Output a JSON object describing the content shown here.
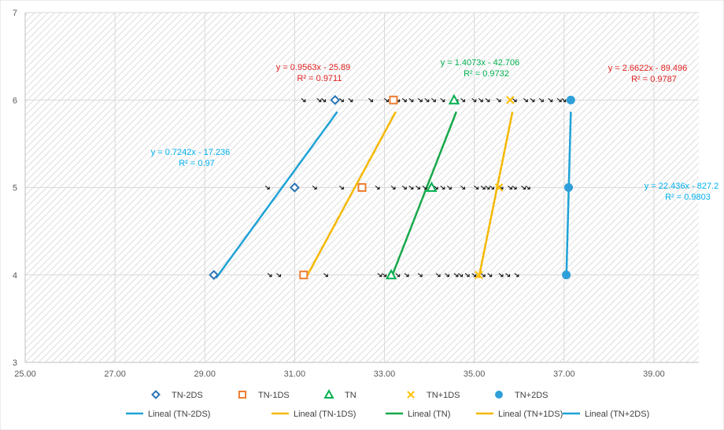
{
  "chart_data": {
    "type": "scatter",
    "xlim": [
      25.0,
      40.0
    ],
    "ylim": [
      3,
      7
    ],
    "x_ticks": [
      "25.00",
      "27.00",
      "29.00",
      "31.00",
      "33.00",
      "35.00",
      "37.00",
      "39.00"
    ],
    "y_ticks": [
      "3",
      "4",
      "5",
      "6",
      "7"
    ],
    "grid": true,
    "legend_position": "bottom",
    "series": [
      {
        "name": "TN-2DS",
        "marker": "diamond",
        "color": "#2E75B6",
        "x": [
          29.2,
          31.0,
          31.9
        ],
        "y": [
          4,
          5,
          6
        ]
      },
      {
        "name": "TN-1DS",
        "marker": "square",
        "color": "#ED7D31",
        "x": [
          31.2,
          32.5,
          33.2
        ],
        "y": [
          4,
          5,
          6
        ]
      },
      {
        "name": "TN",
        "marker": "triangle",
        "color": "#00B050",
        "x": [
          33.15,
          34.05,
          34.55
        ],
        "y": [
          4,
          5,
          6
        ]
      },
      {
        "name": "TN+1DS",
        "marker": "x",
        "color": "#FFC000",
        "x": [
          35.1,
          35.55,
          35.8
        ],
        "y": [
          4,
          5,
          6
        ]
      },
      {
        "name": "TN+2DS",
        "marker": "circle",
        "color": "#2E9FD9",
        "x": [
          37.05,
          37.1,
          37.15
        ],
        "y": [
          4,
          5,
          6
        ]
      }
    ],
    "trendlines": [
      {
        "name": "Lineal (TN-2DS)",
        "color": "#1FA2D6",
        "x_range": [
          29.25,
          31.95
        ],
        "equation": "y = 0.7242x - 17.236",
        "r2": "R² = 0.97",
        "label_color": "#00B0F0"
      },
      {
        "name": "Lineal (TN-1DS)",
        "color": "#F5B800",
        "x_range": [
          31.25,
          33.25
        ],
        "equation": "y = 0.9563x - 25.89",
        "r2": "R² = 0.9711",
        "label_color": "#E02020"
      },
      {
        "name": "Lineal (TN)",
        "color": "#17A84A",
        "x_range": [
          33.15,
          34.6
        ],
        "equation": "y = 1.4073x - 42.706",
        "r2": "R² = 0.9732",
        "label_color": "#00B050"
      },
      {
        "name": "Lineal (TN+1DS)",
        "color": "#F5B800",
        "x_range": [
          35.1,
          35.85
        ],
        "equation": "y = 2.6622x - 89.496",
        "r2": "R² = 0.9787",
        "label_color": "#E02020"
      },
      {
        "name": "Lineal (TN+2DS)",
        "color": "#1FA2D6",
        "x_range": [
          37.05,
          37.15
        ],
        "equation": "y = 22.436x - 827.2",
        "r2": "R² = 0.9803",
        "label_color": "#00B0F0"
      }
    ],
    "raw_points": {
      "y4": [
        30.45,
        30.65,
        31.7,
        32.9,
        33.0,
        33.3,
        33.5,
        33.8,
        34.2,
        34.4,
        34.6,
        34.7,
        34.85,
        35.0,
        35.2,
        35.35,
        35.6,
        35.75,
        35.95
      ],
      "y5": [
        30.4,
        31.45,
        32.05,
        32.85,
        33.2,
        33.45,
        33.6,
        33.75,
        33.9,
        34.15,
        34.3,
        34.45,
        34.75,
        35.05,
        35.2,
        35.3,
        35.4,
        35.6,
        35.8,
        35.9,
        36.1,
        36.2
      ],
      "y6": [
        31.2,
        31.55,
        31.65,
        32.05,
        32.25,
        32.7,
        33.05,
        33.3,
        33.45,
        33.6,
        33.8,
        33.95,
        34.1,
        34.3,
        34.6,
        34.75,
        35.0,
        35.15,
        35.3,
        35.55,
        35.9,
        36.15,
        36.3,
        36.5,
        36.7,
        36.9,
        37.0
      ]
    }
  }
}
